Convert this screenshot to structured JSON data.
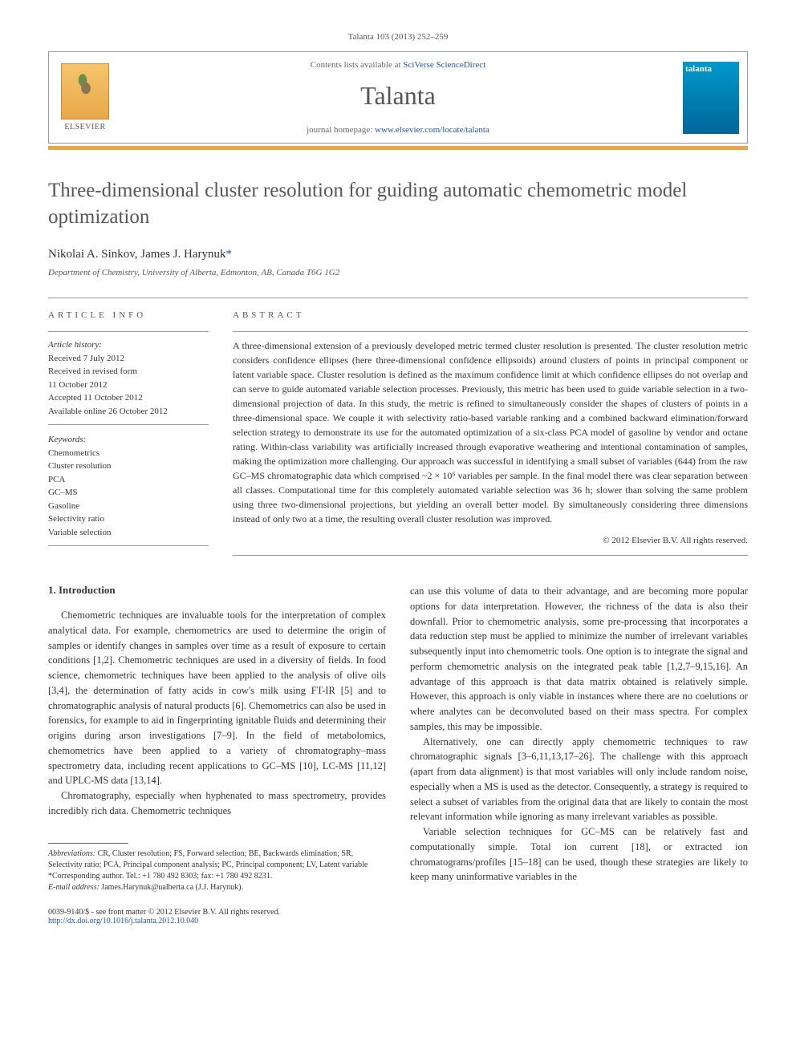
{
  "journal_ref": "Talanta 103 (2013) 252–259",
  "contents_text": "Contents lists available at ",
  "contents_link": "SciVerse ScienceDirect",
  "journal_name": "Talanta",
  "homepage_text": "journal homepage: ",
  "homepage_link": "www.elsevier.com/locate/talanta",
  "publisher": "ELSEVIER",
  "talanta_cover": "talanta",
  "title": "Three-dimensional cluster resolution for guiding automatic chemometric model optimization",
  "authors_html": "Nikolai A. Sinkov, James J. Harynuk",
  "author_marker": "*",
  "affiliation": "Department of Chemistry, University of Alberta, Edmonton, AB, Canada T6G 1G2",
  "info_header": "ARTICLE INFO",
  "abstract_header": "ABSTRACT",
  "history_label": "Article history:",
  "history": {
    "received": "Received 7 July 2012",
    "revised": "Received in revised form",
    "revised_date": "11 October 2012",
    "accepted": "Accepted 11 October 2012",
    "online": "Available online 26 October 2012"
  },
  "keywords_label": "Keywords:",
  "keywords": [
    "Chemometrics",
    "Cluster resolution",
    "PCA",
    "GC–MS",
    "Gasoline",
    "Selectivity ratio",
    "Variable selection"
  ],
  "abstract": "A three-dimensional extension of a previously developed metric termed cluster resolution is presented. The cluster resolution metric considers confidence ellipses (here three-dimensional confidence ellipsoids) around clusters of points in principal component or latent variable space. Cluster resolution is defined as the maximum confidence limit at which confidence ellipses do not overlap and can serve to guide automated variable selection processes. Previously, this metric has been used to guide variable selection in a two-dimensional projection of data. In this study, the metric is refined to simultaneously consider the shapes of clusters of points in a three-dimensional space. We couple it with selectivity ratio-based variable ranking and a combined backward elimination/forward selection strategy to demonstrate its use for the automated optimization of a six-class PCA model of gasoline by vendor and octane rating. Within-class variability was artificially increased through evaporative weathering and intentional contamination of samples, making the optimization more challenging. Our approach was successful in identifying a small subset of variables (644) from the raw GC–MS chromatographic data which comprised ~2 × 10⁶ variables per sample. In the final model there was clear separation between all classes. Computational time for this completely automated variable selection was 36 h; slower than solving the same problem using three two-dimensional projections, but yielding an overall better model. By simultaneously considering three dimensions instead of only two at a time, the resulting overall cluster resolution was improved.",
  "copyright": "© 2012 Elsevier B.V. All rights reserved.",
  "section1_heading": "1.  Introduction",
  "para1": "Chemometric techniques are invaluable tools for the interpretation of complex analytical data. For example, chemometrics are used to determine the origin of samples or identify changes in samples over time as a result of exposure to certain conditions [1,2]. Chemometric techniques are used in a diversity of fields. In food science, chemometric techniques have been applied to the analysis of olive oils [3,4], the determination of fatty acids in cow's milk using FT-IR [5] and to chromatographic analysis of natural products [6]. Chemometrics can also be used in forensics, for example to aid in fingerprinting ignitable fluids and determining their origins during arson investigations [7–9]. In the field of metabolomics, chemometrics have been applied to a variety of chromatography–mass spectrometry data, including recent applications to GC–MS [10], LC-MS [11,12] and UPLC-MS data [13,14].",
  "para2": "Chromatography, especially when hyphenated to mass spectrometry, provides incredibly rich data. Chemometric techniques",
  "para3": "can use this volume of data to their advantage, and are becoming more popular options for data interpretation. However, the richness of the data is also their downfall. Prior to chemometric analysis, some pre-processing that incorporates a data reduction step must be applied to minimize the number of irrelevant variables subsequently input into chemometric tools. One option is to integrate the signal and perform chemometric analysis on the integrated peak table [1,2,7–9,15,16]. An advantage of this approach is that data matrix obtained is relatively simple. However, this approach is only viable in instances where there are no coelutions or where analytes can be deconvoluted based on their mass spectra. For complex samples, this may be impossible.",
  "para4": "Alternatively, one can directly apply chemometric techniques to raw chromatographic signals [3–6,11,13,17–26]. The challenge with this approach (apart from data alignment) is that most variables will only include random noise, especially when a MS is used as the detector. Consequently, a strategy is required to select a subset of variables from the original data that are likely to contain the most relevant information while ignoring as many irrelevant variables as possible.",
  "para5": "Variable selection techniques for GC–MS can be relatively fast and computationally simple. Total ion current [18], or extracted ion chromatograms/profiles [15–18] can be used, though these strategies are likely to keep many uninformative variables in the",
  "abbrev_label": "Abbreviations:",
  "abbrev_text": " CR, Cluster resolution; FS, Forward selection; BE, Backwards elimination; SR, Selectivity ratio; PCA, Principal component analysis; PC, Principal component; LV, Latent variable",
  "corresp_label": "*Corresponding author. Tel.: +1 780 492 8303; fax: +1 780 492 8231.",
  "email_label": "E-mail address:",
  "email": " James.Harynuk@ualberta.ca (J.J. Harynuk).",
  "issn_line": "0039-9140/$ - see front matter © 2012 Elsevier B.V. All rights reserved.",
  "doi_link": "http://dx.doi.org/10.1016/j.talanta.2012.10.040",
  "colors": {
    "link": "#2255aa",
    "orange": "#e8a84a",
    "text": "#333333",
    "heading": "#565656"
  }
}
